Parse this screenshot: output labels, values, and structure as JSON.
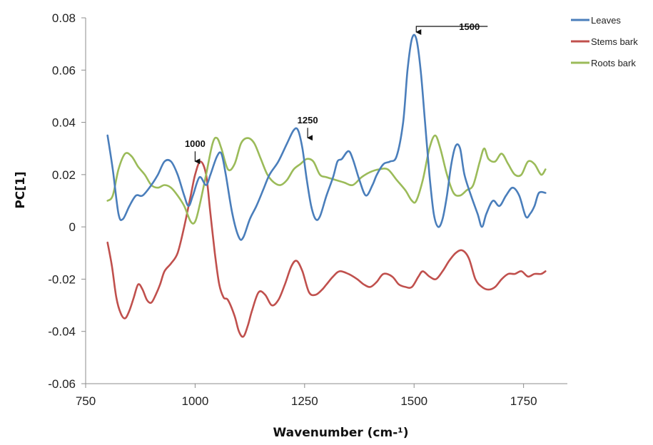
{
  "chart_data": {
    "type": "line",
    "xlabel": "Wavenumber (cm-¹)",
    "ylabel": "PC[1]",
    "xlim": [
      750,
      1850
    ],
    "ylim": [
      -0.06,
      0.08
    ],
    "x_ticks": [
      "750",
      "1000",
      "1250",
      "1500",
      "1750"
    ],
    "y_ticks": [
      "-0.06",
      "-0.04",
      "-0.02",
      "0",
      "0.02",
      "0.04",
      "0.06",
      "0.08"
    ],
    "grid": false,
    "legend_position": "top-right",
    "series": [
      {
        "name": "Leaves",
        "color": "#4a7ebb",
        "points": [
          [
            800,
            0.035
          ],
          [
            812,
            0.022
          ],
          [
            825,
            0.005
          ],
          [
            835,
            0.003
          ],
          [
            850,
            0.008
          ],
          [
            865,
            0.012
          ],
          [
            880,
            0.012
          ],
          [
            900,
            0.016
          ],
          [
            915,
            0.02
          ],
          [
            930,
            0.025
          ],
          [
            945,
            0.025
          ],
          [
            960,
            0.02
          ],
          [
            975,
            0.012
          ],
          [
            985,
            0.008
          ],
          [
            995,
            0.012
          ],
          [
            1010,
            0.019
          ],
          [
            1025,
            0.016
          ],
          [
            1035,
            0.02
          ],
          [
            1050,
            0.027
          ],
          [
            1060,
            0.028
          ],
          [
            1070,
            0.02
          ],
          [
            1085,
            0.005
          ],
          [
            1100,
            -0.004
          ],
          [
            1110,
            -0.004
          ],
          [
            1125,
            0.003
          ],
          [
            1140,
            0.008
          ],
          [
            1155,
            0.014
          ],
          [
            1170,
            0.02
          ],
          [
            1190,
            0.025
          ],
          [
            1210,
            0.032
          ],
          [
            1225,
            0.037
          ],
          [
            1235,
            0.037
          ],
          [
            1245,
            0.03
          ],
          [
            1255,
            0.018
          ],
          [
            1265,
            0.008
          ],
          [
            1275,
            0.003
          ],
          [
            1285,
            0.004
          ],
          [
            1300,
            0.012
          ],
          [
            1315,
            0.019
          ],
          [
            1325,
            0.025
          ],
          [
            1335,
            0.026
          ],
          [
            1350,
            0.029
          ],
          [
            1360,
            0.026
          ],
          [
            1375,
            0.018
          ],
          [
            1390,
            0.012
          ],
          [
            1405,
            0.016
          ],
          [
            1415,
            0.02
          ],
          [
            1430,
            0.024
          ],
          [
            1445,
            0.025
          ],
          [
            1460,
            0.027
          ],
          [
            1475,
            0.04
          ],
          [
            1485,
            0.06
          ],
          [
            1495,
            0.072
          ],
          [
            1505,
            0.072
          ],
          [
            1515,
            0.06
          ],
          [
            1525,
            0.04
          ],
          [
            1535,
            0.02
          ],
          [
            1545,
            0.005
          ],
          [
            1555,
            0.0
          ],
          [
            1565,
            0.003
          ],
          [
            1575,
            0.012
          ],
          [
            1585,
            0.024
          ],
          [
            1595,
            0.031
          ],
          [
            1605,
            0.03
          ],
          [
            1615,
            0.02
          ],
          [
            1630,
            0.012
          ],
          [
            1645,
            0.005
          ],
          [
            1655,
            0.0
          ],
          [
            1665,
            0.005
          ],
          [
            1680,
            0.01
          ],
          [
            1695,
            0.008
          ],
          [
            1710,
            0.012
          ],
          [
            1725,
            0.015
          ],
          [
            1740,
            0.012
          ],
          [
            1755,
            0.004
          ],
          [
            1765,
            0.005
          ],
          [
            1775,
            0.008
          ],
          [
            1785,
            0.013
          ],
          [
            1800,
            0.013
          ]
        ]
      },
      {
        "name": "Stems bark",
        "color": "#c0504d",
        "points": [
          [
            800,
            -0.006
          ],
          [
            810,
            -0.015
          ],
          [
            820,
            -0.027
          ],
          [
            830,
            -0.033
          ],
          [
            840,
            -0.035
          ],
          [
            850,
            -0.032
          ],
          [
            860,
            -0.027
          ],
          [
            870,
            -0.022
          ],
          [
            880,
            -0.024
          ],
          [
            890,
            -0.028
          ],
          [
            900,
            -0.029
          ],
          [
            910,
            -0.026
          ],
          [
            920,
            -0.022
          ],
          [
            930,
            -0.017
          ],
          [
            945,
            -0.014
          ],
          [
            960,
            -0.01
          ],
          [
            975,
            0.0
          ],
          [
            990,
            0.012
          ],
          [
            1000,
            0.02
          ],
          [
            1012,
            0.025
          ],
          [
            1025,
            0.02
          ],
          [
            1035,
            0.005
          ],
          [
            1045,
            -0.01
          ],
          [
            1055,
            -0.022
          ],
          [
            1065,
            -0.027
          ],
          [
            1075,
            -0.028
          ],
          [
            1090,
            -0.034
          ],
          [
            1100,
            -0.04
          ],
          [
            1110,
            -0.042
          ],
          [
            1120,
            -0.038
          ],
          [
            1130,
            -0.032
          ],
          [
            1145,
            -0.025
          ],
          [
            1160,
            -0.026
          ],
          [
            1175,
            -0.03
          ],
          [
            1190,
            -0.028
          ],
          [
            1205,
            -0.022
          ],
          [
            1220,
            -0.015
          ],
          [
            1232,
            -0.013
          ],
          [
            1245,
            -0.017
          ],
          [
            1260,
            -0.025
          ],
          [
            1275,
            -0.026
          ],
          [
            1290,
            -0.024
          ],
          [
            1300,
            -0.022
          ],
          [
            1315,
            -0.019
          ],
          [
            1330,
            -0.017
          ],
          [
            1350,
            -0.018
          ],
          [
            1370,
            -0.02
          ],
          [
            1385,
            -0.022
          ],
          [
            1400,
            -0.023
          ],
          [
            1415,
            -0.021
          ],
          [
            1430,
            -0.018
          ],
          [
            1450,
            -0.019
          ],
          [
            1465,
            -0.022
          ],
          [
            1480,
            -0.023
          ],
          [
            1495,
            -0.023
          ],
          [
            1510,
            -0.019
          ],
          [
            1520,
            -0.017
          ],
          [
            1535,
            -0.019
          ],
          [
            1550,
            -0.02
          ],
          [
            1565,
            -0.017
          ],
          [
            1580,
            -0.013
          ],
          [
            1595,
            -0.01
          ],
          [
            1610,
            -0.009
          ],
          [
            1625,
            -0.012
          ],
          [
            1640,
            -0.02
          ],
          [
            1655,
            -0.023
          ],
          [
            1670,
            -0.024
          ],
          [
            1685,
            -0.023
          ],
          [
            1700,
            -0.02
          ],
          [
            1715,
            -0.018
          ],
          [
            1730,
            -0.018
          ],
          [
            1745,
            -0.017
          ],
          [
            1760,
            -0.019
          ],
          [
            1775,
            -0.018
          ],
          [
            1790,
            -0.018
          ],
          [
            1800,
            -0.017
          ]
        ]
      },
      {
        "name": "Roots bark",
        "color": "#9bbb59",
        "points": [
          [
            800,
            0.01
          ],
          [
            812,
            0.012
          ],
          [
            825,
            0.022
          ],
          [
            840,
            0.028
          ],
          [
            855,
            0.027
          ],
          [
            870,
            0.023
          ],
          [
            885,
            0.02
          ],
          [
            900,
            0.016
          ],
          [
            915,
            0.015
          ],
          [
            930,
            0.016
          ],
          [
            945,
            0.015
          ],
          [
            960,
            0.012
          ],
          [
            975,
            0.008
          ],
          [
            990,
            0.002
          ],
          [
            1000,
            0.002
          ],
          [
            1010,
            0.008
          ],
          [
            1025,
            0.02
          ],
          [
            1040,
            0.032
          ],
          [
            1050,
            0.034
          ],
          [
            1060,
            0.03
          ],
          [
            1075,
            0.022
          ],
          [
            1090,
            0.024
          ],
          [
            1105,
            0.032
          ],
          [
            1120,
            0.034
          ],
          [
            1135,
            0.032
          ],
          [
            1150,
            0.026
          ],
          [
            1165,
            0.02
          ],
          [
            1180,
            0.017
          ],
          [
            1195,
            0.016
          ],
          [
            1210,
            0.018
          ],
          [
            1225,
            0.022
          ],
          [
            1240,
            0.024
          ],
          [
            1255,
            0.026
          ],
          [
            1270,
            0.025
          ],
          [
            1285,
            0.02
          ],
          [
            1300,
            0.019
          ],
          [
            1320,
            0.018
          ],
          [
            1340,
            0.017
          ],
          [
            1360,
            0.016
          ],
          [
            1380,
            0.019
          ],
          [
            1400,
            0.021
          ],
          [
            1420,
            0.022
          ],
          [
            1440,
            0.022
          ],
          [
            1460,
            0.018
          ],
          [
            1480,
            0.014
          ],
          [
            1495,
            0.01
          ],
          [
            1505,
            0.01
          ],
          [
            1520,
            0.018
          ],
          [
            1535,
            0.03
          ],
          [
            1548,
            0.035
          ],
          [
            1560,
            0.03
          ],
          [
            1575,
            0.02
          ],
          [
            1590,
            0.013
          ],
          [
            1605,
            0.012
          ],
          [
            1620,
            0.014
          ],
          [
            1635,
            0.016
          ],
          [
            1650,
            0.025
          ],
          [
            1660,
            0.03
          ],
          [
            1670,
            0.026
          ],
          [
            1685,
            0.025
          ],
          [
            1700,
            0.028
          ],
          [
            1715,
            0.024
          ],
          [
            1730,
            0.02
          ],
          [
            1745,
            0.02
          ],
          [
            1760,
            0.025
          ],
          [
            1775,
            0.024
          ],
          [
            1790,
            0.02
          ],
          [
            1800,
            0.022
          ]
        ]
      }
    ],
    "annotations": [
      {
        "label": "1000",
        "x": 1000,
        "y": 0.024,
        "style": "arrow-down"
      },
      {
        "label": "1250",
        "x": 1257,
        "y": 0.033,
        "style": "arrow-down"
      },
      {
        "label": "1500",
        "x": 1505,
        "y": 0.074,
        "style": "elbow-arrow"
      }
    ]
  }
}
